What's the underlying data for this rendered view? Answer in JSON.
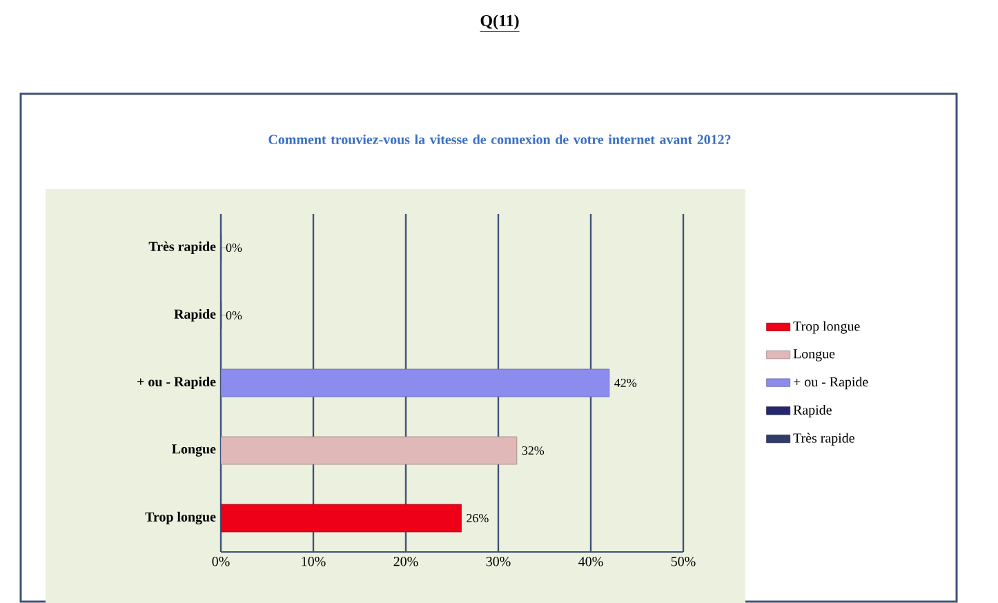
{
  "chart_data": {
    "type": "bar",
    "orientation": "horizontal",
    "title": "Q(11)",
    "subtitle": "Comment trouviez-vous la vitesse de connexion de votre internet avant 2012?",
    "categories": [
      "Très rapide",
      "Rapide",
      "+ ou - Rapide",
      "Longue",
      "Trop longue"
    ],
    "series": [
      {
        "name": "Trop longue",
        "color": "#ee0018",
        "values": [
          null,
          null,
          null,
          null,
          26
        ],
        "value_labels": [
          null,
          null,
          null,
          null,
          "26%"
        ]
      },
      {
        "name": "Longue",
        "color": "#e0b8b8",
        "values": [
          null,
          null,
          null,
          32,
          null
        ],
        "value_labels": [
          null,
          null,
          null,
          "32%",
          null
        ]
      },
      {
        "name": "+ ou - Rapide",
        "color": "#8c8cee",
        "values": [
          null,
          null,
          42,
          null,
          null
        ],
        "value_labels": [
          null,
          null,
          "42%",
          null,
          null
        ]
      },
      {
        "name": "Rapide",
        "color": "#25286e",
        "values": [
          null,
          0,
          null,
          null,
          null
        ],
        "value_labels": [
          null,
          "0%",
          null,
          null,
          null
        ]
      },
      {
        "name": "Très rapide",
        "color": "#2f3d6b",
        "values": [
          0,
          null,
          null,
          null,
          null
        ],
        "value_labels": [
          "0%",
          null,
          null,
          null,
          null
        ]
      }
    ],
    "xlim": [
      0,
      50
    ],
    "xticks": [
      {
        "value": 0,
        "label": "0%"
      },
      {
        "value": 10,
        "label": "10%"
      },
      {
        "value": 20,
        "label": "20%"
      },
      {
        "value": 30,
        "label": "30%"
      },
      {
        "value": 40,
        "label": "40%"
      },
      {
        "value": 50,
        "label": "50%"
      }
    ],
    "grid": "x",
    "legend": "right"
  }
}
